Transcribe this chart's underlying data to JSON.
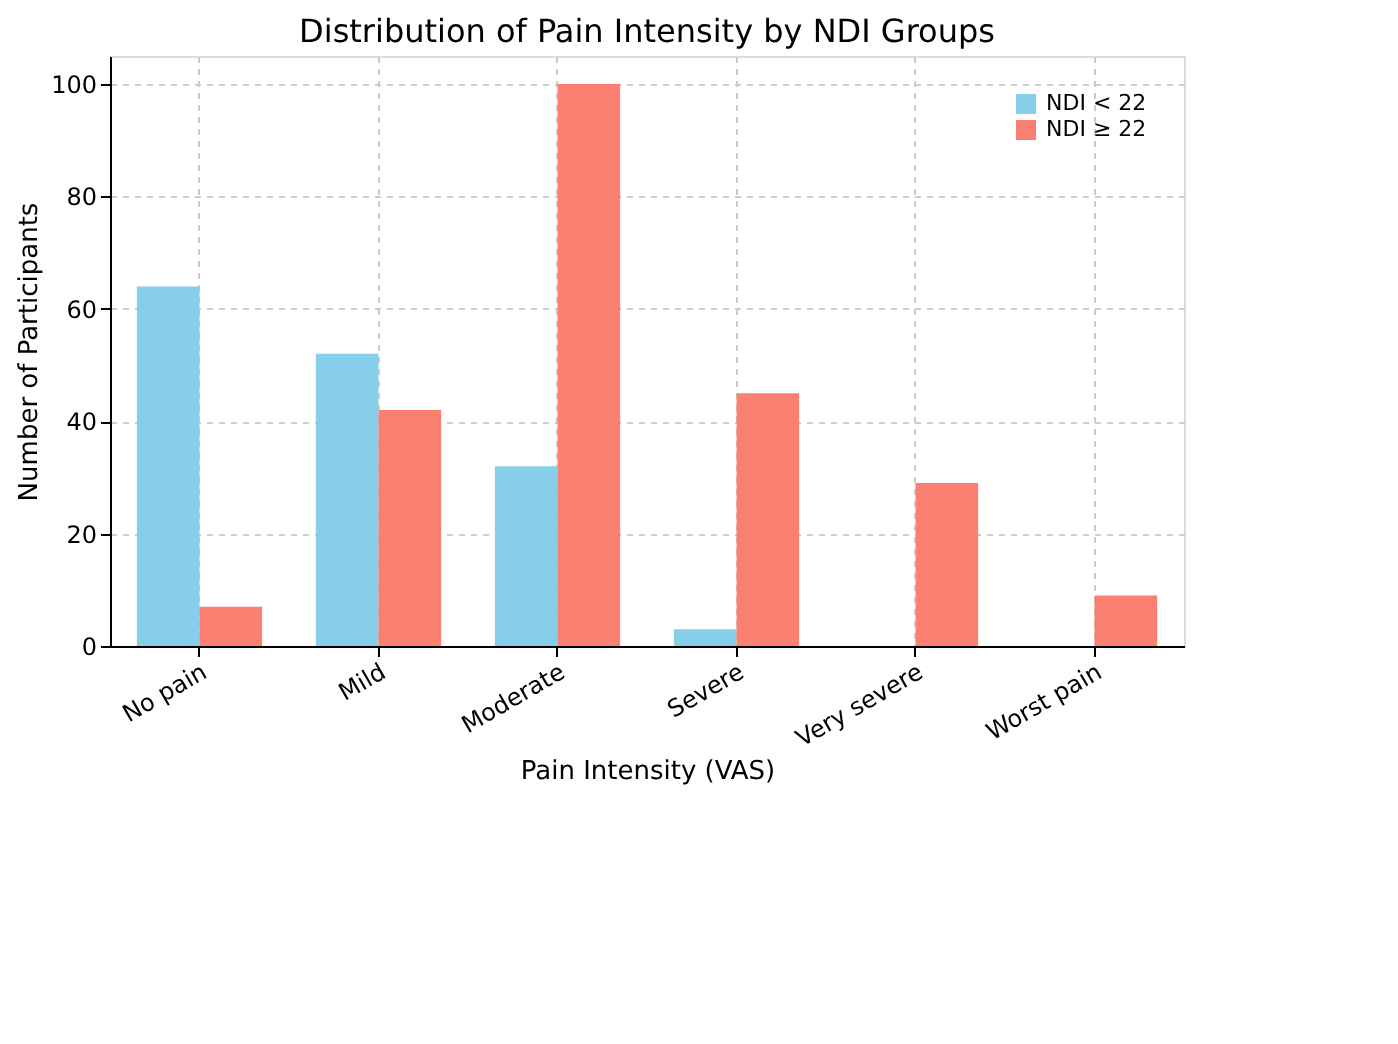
{
  "chart_data": {
    "type": "bar",
    "title": "Distribution of Pain Intensity by NDI Groups",
    "xlabel": "Pain Intensity (VAS)",
    "ylabel": "Number of Participants",
    "categories": [
      "No pain",
      "Mild",
      "Moderate",
      "Severe",
      "Very severe",
      "Worst pain"
    ],
    "series": [
      {
        "name": "NDI < 22",
        "color": "#87ceeb",
        "values": [
          64,
          52,
          32,
          3,
          0,
          0
        ]
      },
      {
        "name": "NDI ≥ 22",
        "color": "#fa8072",
        "values": [
          7,
          42,
          100,
          45,
          29,
          9
        ]
      }
    ],
    "ylim": [
      0,
      105
    ],
    "yticks": [
      0,
      20,
      40,
      60,
      80,
      100
    ],
    "grid": true,
    "legend": "top right"
  }
}
